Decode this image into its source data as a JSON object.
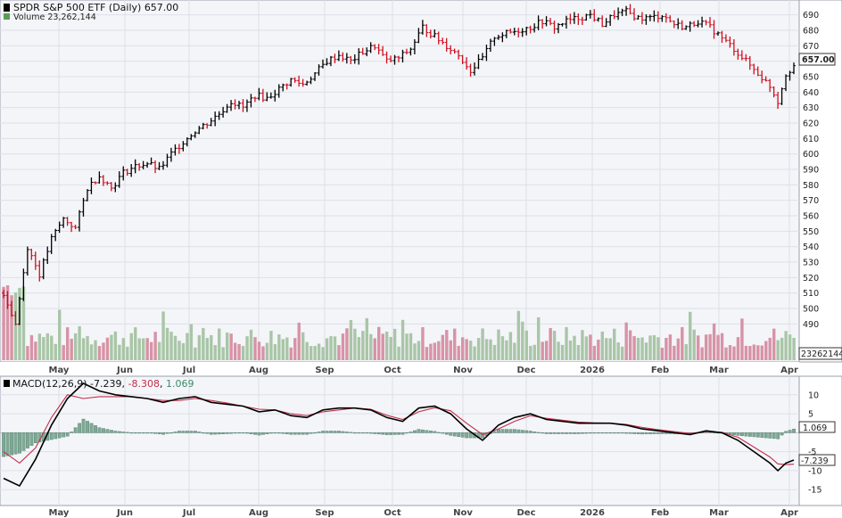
{
  "chart_data": {
    "type": "bar",
    "title": "SPDR S&P 500 ETF (Daily) 657.00",
    "volume_label": "Volume 23,262,144",
    "volume_value": 23262144,
    "last_price": "657.00",
    "last_volume": "23262144",
    "months": [
      {
        "label": "May",
        "bold": false
      },
      {
        "label": "Jun",
        "bold": false
      },
      {
        "label": "Jul",
        "bold": false
      },
      {
        "label": "Aug",
        "bold": false
      },
      {
        "label": "Sep",
        "bold": false
      },
      {
        "label": "Oct",
        "bold": false
      },
      {
        "label": "Nov",
        "bold": false
      },
      {
        "label": "Dec",
        "bold": false
      },
      {
        "label": "2026",
        "bold": true
      },
      {
        "label": "Feb",
        "bold": false
      },
      {
        "label": "Mar",
        "bold": false
      },
      {
        "label": "Apr",
        "bold": false
      }
    ],
    "price_axis": {
      "min": 470,
      "max": 695,
      "ticks": [
        490,
        500,
        510,
        520,
        530,
        540,
        550,
        560,
        570,
        580,
        590,
        600,
        610,
        620,
        630,
        640,
        650,
        660,
        670,
        680,
        690
      ]
    },
    "price_path": [
      [
        0,
        510
      ],
      [
        3,
        490
      ],
      [
        6,
        540
      ],
      [
        9,
        522
      ],
      [
        12,
        545
      ],
      [
        15,
        558
      ],
      [
        18,
        552
      ],
      [
        21,
        578
      ],
      [
        24,
        586
      ],
      [
        27,
        578
      ],
      [
        30,
        588
      ],
      [
        33,
        592
      ],
      [
        36,
        594
      ],
      [
        39,
        590
      ],
      [
        42,
        600
      ],
      [
        45,
        608
      ],
      [
        48,
        615
      ],
      [
        51,
        620
      ],
      [
        54,
        626
      ],
      [
        57,
        634
      ],
      [
        60,
        630
      ],
      [
        63,
        638
      ],
      [
        66,
        636
      ],
      [
        69,
        642
      ],
      [
        72,
        648
      ],
      [
        75,
        645
      ],
      [
        78,
        652
      ],
      [
        81,
        660
      ],
      [
        84,
        664
      ],
      [
        87,
        660
      ],
      [
        90,
        666
      ],
      [
        93,
        670
      ],
      [
        96,
        660
      ],
      [
        99,
        662
      ],
      [
        102,
        668
      ],
      [
        105,
        682
      ],
      [
        108,
        676
      ],
      [
        111,
        670
      ],
      [
        114,
        664
      ],
      [
        117,
        654
      ],
      [
        120,
        662
      ],
      [
        123,
        676
      ],
      [
        126,
        678
      ],
      [
        129,
        680
      ],
      [
        132,
        682
      ],
      [
        135,
        686
      ],
      [
        138,
        682
      ],
      [
        141,
        686
      ],
      [
        144,
        688
      ],
      [
        147,
        690
      ],
      [
        150,
        684
      ],
      [
        153,
        690
      ],
      [
        156,
        692
      ],
      [
        159,
        688
      ],
      [
        162,
        688
      ],
      [
        165,
        690
      ],
      [
        168,
        684
      ],
      [
        171,
        682
      ],
      [
        174,
        686
      ],
      [
        177,
        682
      ],
      [
        180,
        675
      ],
      [
        183,
        668
      ],
      [
        186,
        660
      ],
      [
        189,
        652
      ],
      [
        192,
        644
      ],
      [
        194,
        634
      ],
      [
        196,
        652
      ],
      [
        198,
        657
      ]
    ],
    "macd": {
      "label": "MACD(12,26,9)",
      "macd_value": "-7.239",
      "signal_value": "-8.308",
      "hist_value": "1.069",
      "axis": {
        "min": -18,
        "max": 13,
        "ticks": [
          10,
          5,
          -5,
          -10,
          -15
        ]
      },
      "macd_path": [
        [
          0,
          -12
        ],
        [
          4,
          -14
        ],
        [
          8,
          -7
        ],
        [
          12,
          2
        ],
        [
          16,
          9
        ],
        [
          20,
          13
        ],
        [
          24,
          11
        ],
        [
          28,
          10
        ],
        [
          32,
          9.5
        ],
        [
          36,
          9
        ],
        [
          40,
          8
        ],
        [
          44,
          9
        ],
        [
          48,
          9.5
        ],
        [
          52,
          8
        ],
        [
          56,
          7.5
        ],
        [
          60,
          7
        ],
        [
          64,
          5.5
        ],
        [
          68,
          6
        ],
        [
          72,
          4.5
        ],
        [
          76,
          4
        ],
        [
          80,
          6
        ],
        [
          84,
          6.5
        ],
        [
          88,
          6.5
        ],
        [
          92,
          6
        ],
        [
          96,
          4
        ],
        [
          100,
          3
        ],
        [
          104,
          6.5
        ],
        [
          108,
          7
        ],
        [
          112,
          5
        ],
        [
          116,
          1
        ],
        [
          120,
          -2
        ],
        [
          124,
          2
        ],
        [
          128,
          4
        ],
        [
          132,
          5
        ],
        [
          136,
          3.5
        ],
        [
          140,
          3
        ],
        [
          144,
          2.5
        ],
        [
          148,
          2.5
        ],
        [
          152,
          2.5
        ],
        [
          156,
          2
        ],
        [
          160,
          1
        ],
        [
          164,
          0.5
        ],
        [
          168,
          0
        ],
        [
          172,
          -0.5
        ],
        [
          176,
          0.5
        ],
        [
          180,
          0
        ],
        [
          184,
          -2
        ],
        [
          188,
          -5
        ],
        [
          192,
          -8
        ],
        [
          194,
          -10
        ],
        [
          196,
          -8
        ],
        [
          198,
          -7.2
        ]
      ],
      "signal_path": [
        [
          0,
          -5
        ],
        [
          4,
          -8
        ],
        [
          8,
          -4
        ],
        [
          12,
          4
        ],
        [
          16,
          10
        ],
        [
          20,
          9
        ],
        [
          24,
          9.5
        ],
        [
          28,
          9.5
        ],
        [
          32,
          9.5
        ],
        [
          36,
          9
        ],
        [
          40,
          8.5
        ],
        [
          44,
          8.5
        ],
        [
          48,
          9
        ],
        [
          52,
          8.5
        ],
        [
          56,
          7.8
        ],
        [
          60,
          7
        ],
        [
          64,
          6.2
        ],
        [
          68,
          6
        ],
        [
          72,
          5
        ],
        [
          76,
          4.5
        ],
        [
          80,
          5.5
        ],
        [
          84,
          6
        ],
        [
          88,
          6.5
        ],
        [
          92,
          6.2
        ],
        [
          96,
          4.6
        ],
        [
          100,
          3.5
        ],
        [
          104,
          5.5
        ],
        [
          108,
          6.6
        ],
        [
          112,
          5.8
        ],
        [
          116,
          2.5
        ],
        [
          120,
          -0.5
        ],
        [
          124,
          1
        ],
        [
          128,
          3
        ],
        [
          132,
          4.5
        ],
        [
          136,
          3.8
        ],
        [
          140,
          3.3
        ],
        [
          144,
          2.8
        ],
        [
          148,
          2.6
        ],
        [
          152,
          2.5
        ],
        [
          156,
          2.2
        ],
        [
          160,
          1.4
        ],
        [
          164,
          0.8
        ],
        [
          168,
          0.3
        ],
        [
          172,
          -0.2
        ],
        [
          176,
          0.3
        ],
        [
          180,
          0.1
        ],
        [
          184,
          -1.2
        ],
        [
          188,
          -3.8
        ],
        [
          192,
          -6.4
        ],
        [
          194,
          -8.2
        ],
        [
          196,
          -8.4
        ],
        [
          198,
          -8.3
        ]
      ]
    }
  }
}
